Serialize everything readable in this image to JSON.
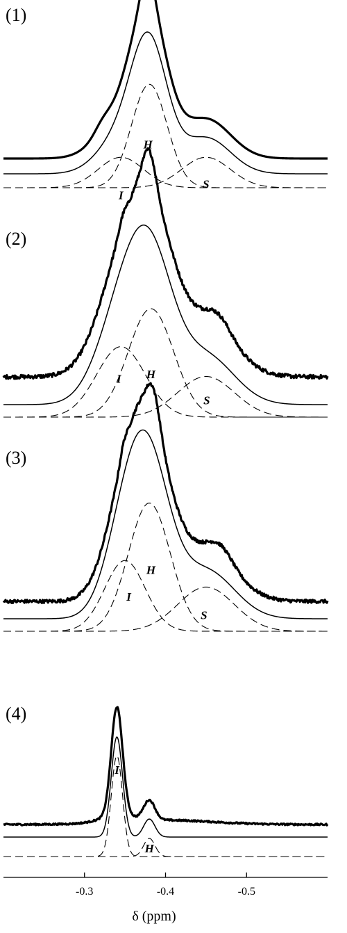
{
  "chart_data": {
    "type": "line",
    "title": "",
    "xlabel": "δ (ppm)",
    "ylabel": "",
    "xlim": [
      -0.2,
      -0.6
    ],
    "x_reversed": true,
    "xticks": [
      -0.3,
      -0.4,
      -0.5
    ],
    "xtick_labels": [
      "-0.3",
      "-0.4",
      "-0.5"
    ],
    "grid": false,
    "panels": [
      {
        "label": "(1)",
        "noise": 0.0,
        "components": [
          {
            "name": "I",
            "center": -0.345,
            "width": 0.028,
            "height": 0.25
          },
          {
            "name": "H",
            "center": -0.38,
            "width": 0.022,
            "height": 0.85
          },
          {
            "name": "S",
            "center": -0.45,
            "width": 0.03,
            "height": 0.25
          }
        ],
        "experimental_extra": [
          {
            "center": -0.378,
            "width": 0.008,
            "height": 0.2
          },
          {
            "center": -0.322,
            "width": 0.01,
            "height": 0.05
          }
        ],
        "peak_labels": [
          {
            "text": "I",
            "x": -0.345
          },
          {
            "text": "H",
            "x": -0.38
          },
          {
            "text": "S",
            "x": -0.45
          }
        ]
      },
      {
        "label": "(2)",
        "noise": 0.022,
        "components": [
          {
            "name": "I",
            "center": -0.345,
            "width": 0.03,
            "height": 0.52
          },
          {
            "name": "H",
            "center": -0.382,
            "width": 0.028,
            "height": 0.8
          },
          {
            "name": "S",
            "center": -0.45,
            "width": 0.035,
            "height": 0.3
          }
        ],
        "experimental_extra": [
          {
            "center": -0.38,
            "width": 0.008,
            "height": 0.2
          },
          {
            "center": -0.347,
            "width": 0.004,
            "height": 0.04
          },
          {
            "center": -0.465,
            "width": 0.015,
            "height": 0.08
          }
        ],
        "peak_labels": [
          {
            "text": "I",
            "x": -0.345
          },
          {
            "text": "H",
            "x": -0.382
          },
          {
            "text": "S",
            "x": -0.45
          }
        ]
      },
      {
        "label": "(3)",
        "noise": 0.02,
        "components": [
          {
            "name": "I",
            "center": -0.35,
            "width": 0.025,
            "height": 0.48
          },
          {
            "name": "H",
            "center": -0.38,
            "width": 0.026,
            "height": 0.87
          },
          {
            "name": "S",
            "center": -0.45,
            "width": 0.035,
            "height": 0.3
          }
        ],
        "experimental_extra": [
          {
            "center": -0.385,
            "width": 0.008,
            "height": 0.18
          },
          {
            "center": -0.348,
            "width": 0.004,
            "height": 0.05
          },
          {
            "center": -0.468,
            "width": 0.014,
            "height": 0.07
          }
        ],
        "peak_labels": [
          {
            "text": "I",
            "x": -0.352
          },
          {
            "text": "H",
            "x": -0.382
          },
          {
            "text": "S",
            "x": -0.45
          }
        ]
      },
      {
        "label": "(4)",
        "noise": 0.015,
        "components": [
          {
            "name": "I",
            "center": -0.34,
            "width": 0.007,
            "height": 1.0
          },
          {
            "name": "H",
            "center": -0.38,
            "width": 0.007,
            "height": 0.18
          }
        ],
        "experimental_extra": [
          {
            "center": -0.34,
            "width": 0.02,
            "height": 0.06
          },
          {
            "center": -0.4,
            "width": 0.06,
            "height": 0.04
          }
        ],
        "peak_labels": [
          {
            "text": "I",
            "x": -0.34
          },
          {
            "text": "H",
            "x": -0.38
          }
        ]
      }
    ]
  }
}
